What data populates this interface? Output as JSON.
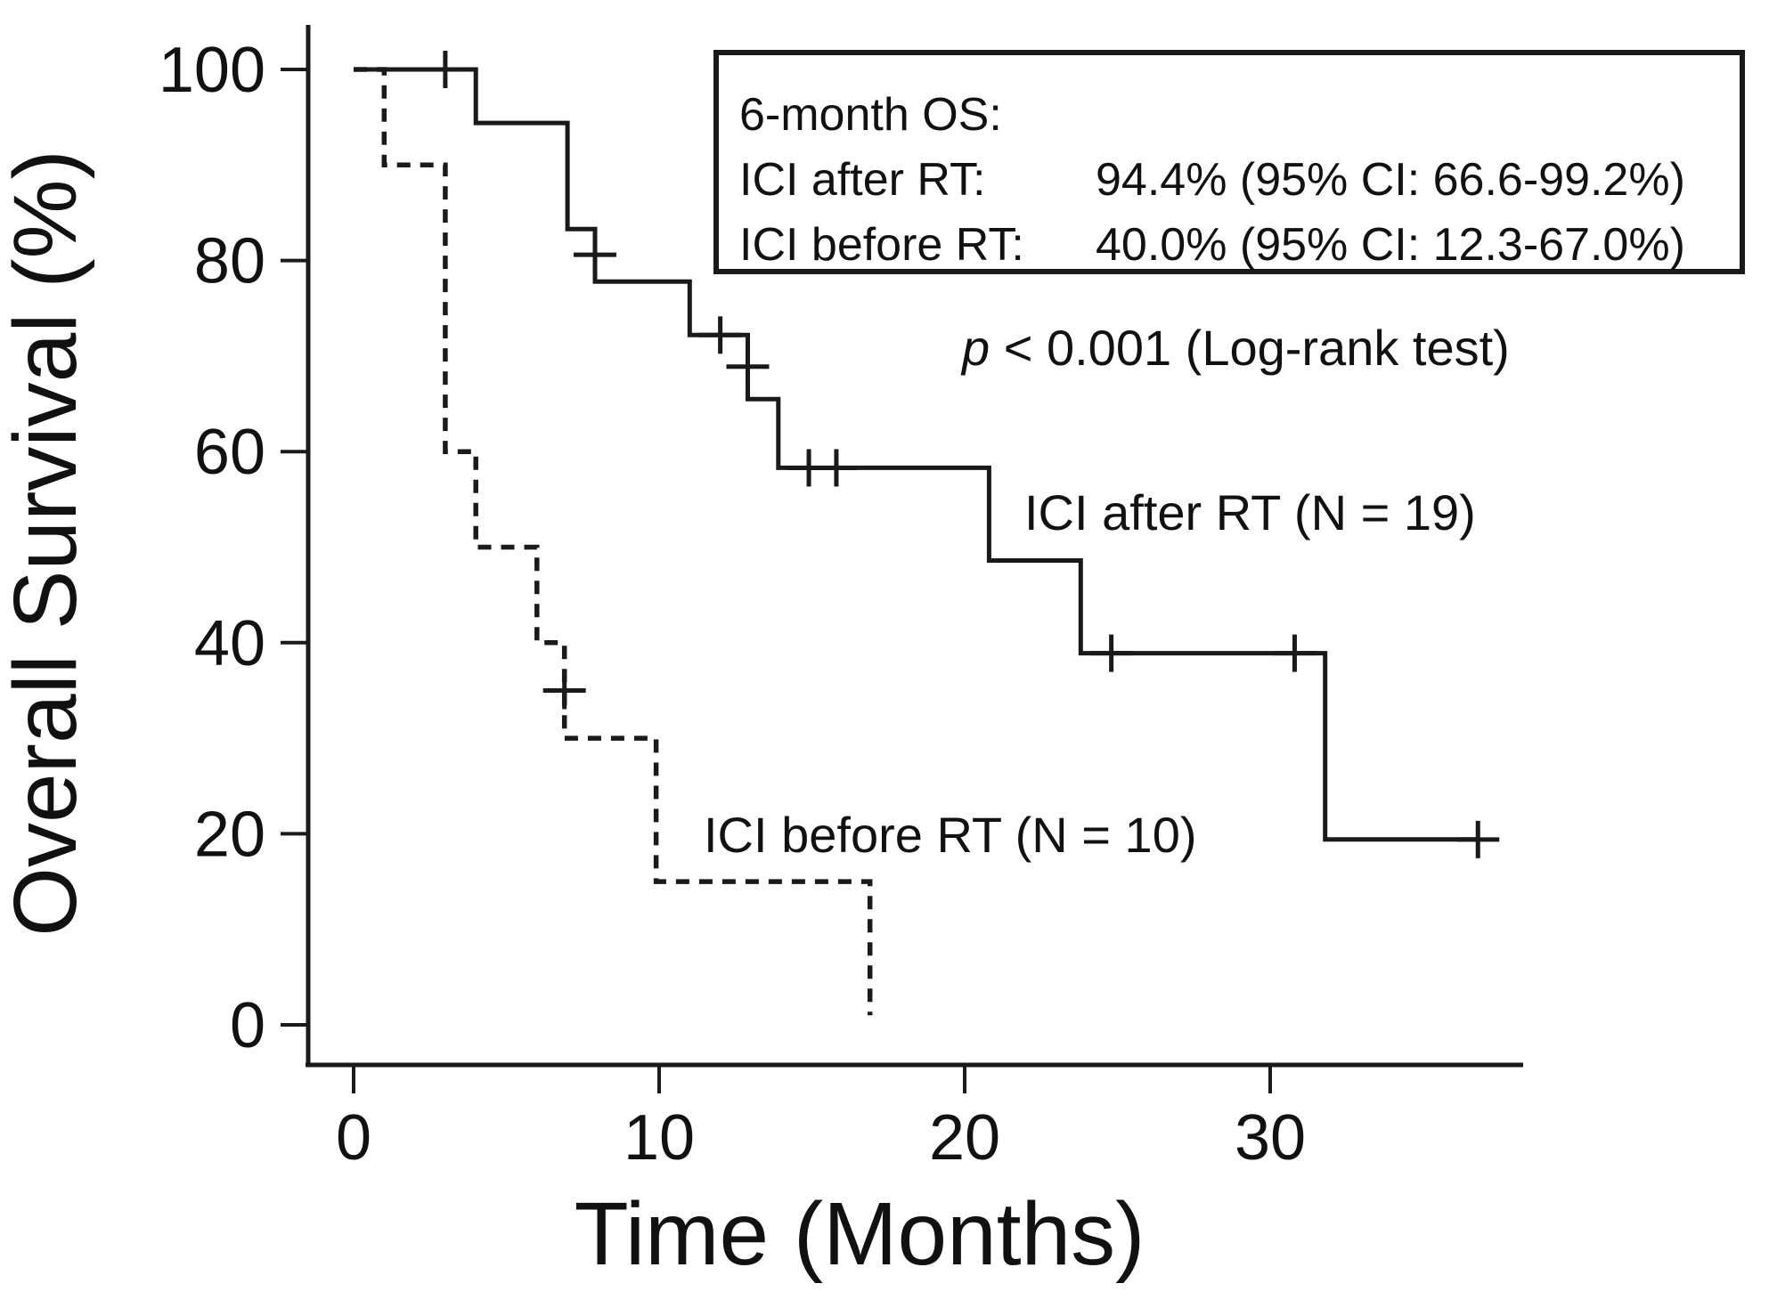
{
  "figure": {
    "background_color": "#ffffff",
    "ink_color": "#1a1a1a"
  },
  "chart_data": {
    "type": "line",
    "subtype": "kaplan-meier-step",
    "title": "",
    "xlabel": "Time (Months)",
    "ylabel": "Overall Survival (%)",
    "xlim": [
      0,
      38.5
    ],
    "ylim": [
      0,
      100
    ],
    "x_ticks": [
      0,
      10,
      20,
      30
    ],
    "y_ticks": [
      0,
      20,
      40,
      60,
      80,
      100
    ],
    "grid": false,
    "legend_position": "inline-labels-on-plot",
    "series": [
      {
        "name": "ICI after RT (N = 19)",
        "n": 19,
        "line_style": "solid",
        "steps": [
          [
            0,
            100
          ],
          [
            4,
            100
          ],
          [
            4,
            94.4
          ],
          [
            7,
            94.4
          ],
          [
            7,
            83.3
          ],
          [
            7.9,
            83.3
          ],
          [
            7.9,
            77.8
          ],
          [
            11,
            77.8
          ],
          [
            11,
            72.2
          ],
          [
            12.9,
            72.2
          ],
          [
            12.9,
            65.5
          ],
          [
            13.9,
            65.5
          ],
          [
            13.9,
            58.3
          ],
          [
            20.8,
            58.3
          ],
          [
            20.8,
            48.6
          ],
          [
            23.8,
            48.6
          ],
          [
            23.8,
            38.9
          ],
          [
            31.8,
            38.9
          ],
          [
            31.8,
            19.4
          ],
          [
            36.8,
            19.4
          ]
        ],
        "censor_marks": [
          [
            3,
            100
          ],
          [
            7.9,
            80.6
          ],
          [
            12,
            72.2
          ],
          [
            12.9,
            68.9
          ],
          [
            14.9,
            58.3
          ],
          [
            15.8,
            58.3
          ],
          [
            24.8,
            38.9
          ],
          [
            30.8,
            38.9
          ],
          [
            36.8,
            19.4
          ]
        ]
      },
      {
        "name": "ICI before RT (N = 10)",
        "n": 10,
        "line_style": "dashed",
        "steps": [
          [
            0,
            100
          ],
          [
            1,
            100
          ],
          [
            1,
            90
          ],
          [
            3,
            90
          ],
          [
            3,
            60
          ],
          [
            4,
            60
          ],
          [
            4,
            50
          ],
          [
            6,
            50
          ],
          [
            6,
            40
          ],
          [
            6.9,
            40
          ],
          [
            6.9,
            30
          ],
          [
            9.9,
            30
          ],
          [
            9.9,
            15
          ],
          [
            16.9,
            15
          ],
          [
            16.9,
            1
          ]
        ],
        "censor_marks": [
          [
            6.9,
            35
          ]
        ]
      }
    ]
  },
  "stats_box": {
    "title": "6-month OS:",
    "rows": [
      {
        "label": "ICI after RT:",
        "value": "94.4% (95% CI: 66.6-99.2%)"
      },
      {
        "label": "ICI before RT:",
        "value": "40.0% (95% CI: 12.3-67.0%)"
      }
    ]
  },
  "p_value": {
    "symbol": "p",
    "text": " < 0.001 (Log-rank test)"
  },
  "series_labels": {
    "after": "ICI after RT (N = 19)",
    "before": "ICI before RT (N = 10)"
  }
}
